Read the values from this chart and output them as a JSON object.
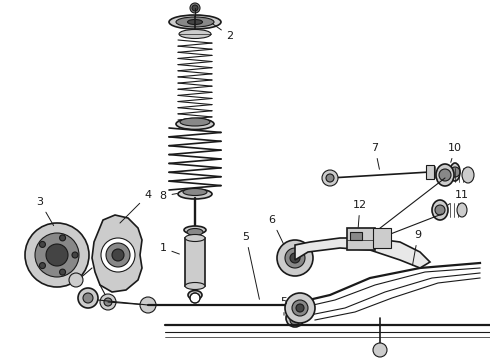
{
  "bg_color": "#f0f0f0",
  "line_color": "#1a1a1a",
  "text_color": "#1a1a1a",
  "fig_width": 4.9,
  "fig_height": 3.6,
  "dpi": 100,
  "white": "#ffffff",
  "gray_light": "#cccccc",
  "gray_mid": "#888888",
  "gray_dark": "#444444"
}
